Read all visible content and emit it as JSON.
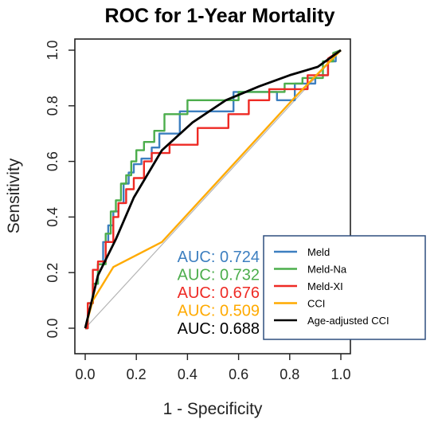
{
  "chart_data": {
    "type": "line",
    "title": "ROC for 1-Year Mortality",
    "xlabel": "1 - Specificity",
    "ylabel": "Sensitivity",
    "xlim": [
      0.0,
      1.0
    ],
    "ylim": [
      0.0,
      1.0
    ],
    "xticks": [
      "0.0",
      "0.2",
      "0.4",
      "0.6",
      "0.8",
      "1.0"
    ],
    "yticks": [
      "0.0",
      "0.2",
      "0.4",
      "0.6",
      "0.8",
      "1.0"
    ],
    "legend_position": "bottom-right",
    "reference_line": {
      "x": [
        0,
        1
      ],
      "y": [
        0,
        1
      ],
      "color": "#b5b5b5"
    },
    "series": [
      {
        "name": "Meld",
        "color": "#3d7fc0",
        "auc_label": "AUC: 0.724",
        "x": [
          0,
          0.01,
          0.01,
          0.03,
          0.03,
          0.05,
          0.05,
          0.07,
          0.07,
          0.09,
          0.09,
          0.11,
          0.11,
          0.13,
          0.13,
          0.15,
          0.15,
          0.17,
          0.17,
          0.19,
          0.19,
          0.22,
          0.22,
          0.26,
          0.26,
          0.29,
          0.29,
          0.37,
          0.37,
          0.58,
          0.58,
          0.75,
          0.75,
          0.82,
          0.82,
          0.9,
          0.9,
          0.95,
          0.95,
          0.98,
          0.98,
          1.0
        ],
        "y": [
          0,
          0,
          0.09,
          0.09,
          0.16,
          0.16,
          0.23,
          0.23,
          0.31,
          0.31,
          0.37,
          0.37,
          0.42,
          0.42,
          0.45,
          0.45,
          0.52,
          0.52,
          0.56,
          0.56,
          0.59,
          0.59,
          0.61,
          0.61,
          0.65,
          0.65,
          0.7,
          0.7,
          0.78,
          0.78,
          0.85,
          0.85,
          0.82,
          0.82,
          0.88,
          0.88,
          0.91,
          0.91,
          0.96,
          0.96,
          0.99,
          1.0
        ]
      },
      {
        "name": "Meld-Na",
        "color": "#4cad4c",
        "auc_label": "AUC: 0.732",
        "x": [
          0,
          0.01,
          0.01,
          0.03,
          0.03,
          0.05,
          0.05,
          0.08,
          0.08,
          0.1,
          0.1,
          0.12,
          0.12,
          0.14,
          0.14,
          0.16,
          0.16,
          0.18,
          0.18,
          0.2,
          0.2,
          0.23,
          0.23,
          0.27,
          0.27,
          0.31,
          0.31,
          0.4,
          0.4,
          0.6,
          0.6,
          0.78,
          0.78,
          0.85,
          0.85,
          0.93,
          0.93,
          0.97,
          0.97,
          1.0
        ],
        "y": [
          0,
          0,
          0.09,
          0.09,
          0.16,
          0.16,
          0.23,
          0.23,
          0.34,
          0.34,
          0.42,
          0.42,
          0.46,
          0.46,
          0.52,
          0.52,
          0.55,
          0.55,
          0.6,
          0.6,
          0.64,
          0.64,
          0.67,
          0.67,
          0.71,
          0.71,
          0.77,
          0.77,
          0.82,
          0.82,
          0.85,
          0.85,
          0.88,
          0.88,
          0.9,
          0.9,
          0.96,
          0.96,
          0.99,
          1.0
        ]
      },
      {
        "name": "Meld-XI",
        "color": "#ee2a24",
        "auc_label": "AUC: 0.676",
        "x": [
          0,
          0.01,
          0.01,
          0.03,
          0.03,
          0.05,
          0.05,
          0.08,
          0.08,
          0.11,
          0.11,
          0.13,
          0.13,
          0.16,
          0.16,
          0.19,
          0.19,
          0.23,
          0.23,
          0.26,
          0.26,
          0.33,
          0.33,
          0.44,
          0.44,
          0.56,
          0.56,
          0.64,
          0.64,
          0.72,
          0.72,
          0.87,
          0.87,
          0.95,
          0.95,
          1.0
        ],
        "y": [
          0,
          0,
          0.09,
          0.09,
          0.21,
          0.21,
          0.24,
          0.24,
          0.31,
          0.31,
          0.4,
          0.4,
          0.45,
          0.45,
          0.5,
          0.5,
          0.54,
          0.54,
          0.6,
          0.6,
          0.63,
          0.63,
          0.66,
          0.66,
          0.72,
          0.72,
          0.77,
          0.77,
          0.82,
          0.82,
          0.86,
          0.86,
          0.91,
          0.91,
          0.97,
          1.0
        ]
      },
      {
        "name": "CCI",
        "color": "#ffaa00",
        "auc_label": "AUC: 0.509",
        "x": [
          0,
          0.03,
          0.11,
          0.3,
          0.55,
          0.83,
          1.0
        ],
        "y": [
          0,
          0.1,
          0.22,
          0.31,
          0.56,
          0.84,
          1.0
        ]
      },
      {
        "name": "Age-adjusted CCI",
        "color": "#000000",
        "auc_label": "AUC: 0.688",
        "x": [
          0,
          0.05,
          0.12,
          0.19,
          0.3,
          0.42,
          0.55,
          0.68,
          0.8,
          0.91,
          1.0
        ],
        "y": [
          0,
          0.19,
          0.32,
          0.47,
          0.64,
          0.74,
          0.82,
          0.87,
          0.91,
          0.94,
          1.0
        ]
      }
    ]
  }
}
